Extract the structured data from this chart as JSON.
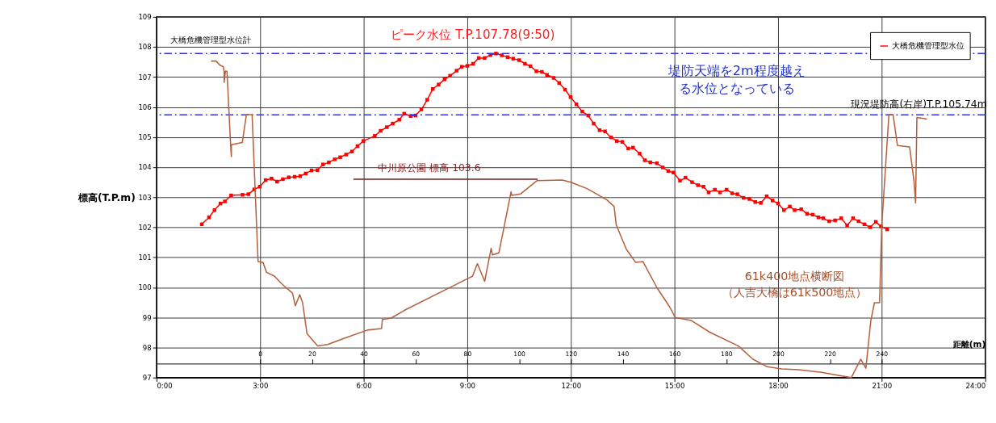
{
  "chart_data": {
    "type": "line",
    "ylabel": "標高(T.P.m)",
    "x2label": "距離(m)",
    "xlim": [
      0,
      24
    ],
    "xticks": [
      {
        "value": 0,
        "label": "0:00"
      },
      {
        "value": 3,
        "label": "3:00"
      },
      {
        "value": 6,
        "label": "6:00"
      },
      {
        "value": 9,
        "label": "9:00"
      },
      {
        "value": 12,
        "label": "12:00"
      },
      {
        "value": 15,
        "label": "15:00"
      },
      {
        "value": 18,
        "label": "18:00"
      },
      {
        "value": 21,
        "label": "21:00"
      },
      {
        "value": 24,
        "label": "24:00"
      }
    ],
    "x2lim": [
      -40,
      280
    ],
    "x2ticks": [
      0,
      20,
      40,
      60,
      80,
      100,
      120,
      140,
      160,
      180,
      200,
      220,
      240
    ],
    "ylim": [
      97,
      109
    ],
    "yticks": [
      97,
      98,
      99,
      100,
      101,
      102,
      103,
      104,
      105,
      106,
      107,
      108,
      109
    ],
    "grid": true,
    "legend": "top right",
    "line_style": "solid",
    "series": [
      {
        "name": "大橋危機管理型水位",
        "color": "#ff0000",
        "marker": "square",
        "x": [
          1.31,
          1.52,
          1.68,
          1.85,
          1.98,
          2.16,
          2.49,
          2.66,
          2.83,
          2.99,
          3.16,
          3.33,
          3.49,
          3.66,
          3.83,
          4.0,
          4.16,
          4.32,
          4.49,
          4.66,
          4.82,
          4.99,
          5.16,
          5.32,
          5.49,
          5.66,
          5.82,
          5.99,
          6.32,
          6.49,
          6.67,
          6.84,
          7.03,
          7.17,
          7.36,
          7.5,
          7.67,
          7.84,
          8.0,
          8.17,
          8.34,
          8.5,
          8.69,
          8.84,
          9.0,
          9.17,
          9.33,
          9.5,
          9.67,
          9.83,
          10.0,
          10.17,
          10.33,
          10.5,
          10.67,
          10.83,
          11.0,
          11.16,
          11.31,
          11.5,
          11.66,
          11.83,
          11.99,
          12.16,
          12.33,
          12.5,
          12.66,
          12.83,
          12.99,
          13.16,
          13.33,
          13.49,
          13.66,
          13.8,
          13.99,
          14.14,
          14.3,
          14.49,
          14.66,
          14.82,
          14.97,
          15.16,
          15.32,
          15.51,
          15.68,
          15.84,
          15.99,
          16.17,
          16.32,
          16.51,
          16.67,
          16.82,
          17.0,
          17.17,
          17.34,
          17.5,
          17.67,
          17.84,
          18.0,
          18.17,
          18.34,
          18.48,
          18.67,
          18.84,
          19.0,
          19.17,
          19.31,
          19.48,
          19.65,
          19.83,
          20.0,
          20.17,
          20.33,
          20.5,
          20.67,
          20.83,
          20.98,
          21.16
        ],
        "values": [
          102.1,
          102.33,
          102.57,
          102.79,
          102.86,
          103.06,
          103.08,
          103.1,
          103.26,
          103.35,
          103.57,
          103.62,
          103.52,
          103.6,
          103.66,
          103.68,
          103.7,
          103.79,
          103.89,
          103.9,
          104.09,
          104.16,
          104.26,
          104.33,
          104.42,
          104.52,
          104.7,
          104.87,
          105.04,
          105.21,
          105.33,
          105.45,
          105.58,
          105.78,
          105.7,
          105.72,
          105.92,
          106.24,
          106.6,
          106.75,
          106.92,
          107.04,
          107.21,
          107.34,
          107.37,
          107.44,
          107.63,
          107.63,
          107.73,
          107.78,
          107.72,
          107.66,
          107.61,
          107.56,
          107.44,
          107.36,
          107.19,
          107.17,
          107.07,
          106.97,
          106.8,
          106.58,
          106.33,
          106.09,
          105.85,
          105.72,
          105.45,
          105.23,
          105.19,
          104.99,
          104.87,
          104.84,
          104.62,
          104.65,
          104.45,
          104.23,
          104.16,
          104.13,
          103.99,
          103.87,
          103.82,
          103.55,
          103.65,
          103.5,
          103.4,
          103.35,
          103.16,
          103.25,
          103.16,
          103.25,
          103.13,
          103.1,
          102.98,
          102.94,
          102.84,
          102.81,
          103.03,
          102.89,
          102.79,
          102.57,
          102.69,
          102.57,
          102.6,
          102.45,
          102.42,
          102.33,
          102.3,
          102.2,
          102.23,
          102.3,
          102.06,
          102.3,
          102.2,
          102.1,
          102.0,
          102.18,
          102.03,
          101.93
        ]
      },
      {
        "color": "#b5603c",
        "axis": "x2",
        "marker": "none",
        "x": [
          -18.9,
          -17,
          -15.6,
          -14.2,
          -13.9,
          -13.9,
          -13.4,
          -12.8,
          -11.4,
          -11.1,
          -11.1,
          -6.9,
          -5.3,
          -3.1,
          -0.8,
          1.1,
          2.5,
          5.6,
          8.3,
          12.5,
          13.6,
          15.3,
          16.4,
          18.1,
          22.2,
          26.1,
          31.9,
          41.4,
          46.9,
          47.2,
          50.6,
          55.8,
          80.3,
          82,
          83.9,
          86.7,
          89.2,
          89.7,
          92.2,
          96.9,
          97.2,
          100.6,
          106.9,
          116.7,
          120,
          126.4,
          133.9,
          136.7,
          137.5,
          141.4,
          145,
          147.8,
          153.3,
          158,
          160.3,
          166.4,
          173.6,
          184.7,
          190.3,
          195.8,
          201.4,
          208,
          217.2,
          224.7,
          228.3,
          231.9,
          233.9,
          235.8,
          237.2,
          239.2,
          240,
          242.8,
          244.4,
          246.1,
          250.8,
          252.5,
          253.1,
          253.6,
          257.5
        ],
        "values": [
          107.53,
          107.53,
          107.4,
          107.34,
          107.19,
          106.82,
          107.19,
          107.19,
          104.75,
          104.35,
          104.75,
          104.82,
          105.75,
          105.75,
          100.86,
          100.83,
          100.5,
          100.37,
          100.12,
          99.81,
          99.39,
          99.76,
          99.49,
          98.46,
          98.05,
          98.1,
          98.29,
          98.58,
          98.63,
          98.93,
          98.98,
          99.24,
          100.3,
          100.37,
          100.79,
          100.2,
          101.3,
          101.08,
          101.15,
          103.18,
          103.06,
          103.11,
          103.55,
          103.57,
          103.5,
          103.28,
          102.91,
          102.69,
          102.08,
          101.27,
          100.83,
          100.86,
          99.98,
          99.37,
          99.0,
          98.9,
          98.51,
          98.05,
          97.61,
          97.36,
          97.29,
          97.26,
          97.17,
          97.05,
          97.0,
          97.61,
          97.31,
          98.88,
          99.49,
          99.49,
          102.0,
          105.75,
          105.75,
          104.72,
          104.67,
          103.52,
          102.81,
          105.65,
          105.6
        ]
      },
      {
        "color": "#7a2020",
        "marker": "none",
        "x": [
          5.7,
          11.04
        ],
        "values": [
          103.6,
          103.6
        ]
      }
    ],
    "ref_lines": [
      {
        "axis": "y",
        "value": 107.78,
        "color": "#3333dd",
        "line_style": "dashed"
      },
      {
        "axis": "y",
        "value": 105.74,
        "label": "現況堤防高(右岸)T.P.105.74m",
        "color": "#3333dd",
        "line_style": "dashed"
      }
    ],
    "annotations": [
      {
        "text": "ピーク水位  T.P.107.78(9:50)",
        "x": 9.83,
        "y": 107.78
      },
      {
        "text": "中川原公園 標高 103.6",
        "x": 7.9,
        "y": 103.6
      },
      "堤防天端を2m程度越える水位となっている",
      "61k400地点横断図（人吉大橋は61k500地点）",
      "大橋危機管理型水位計"
    ]
  }
}
